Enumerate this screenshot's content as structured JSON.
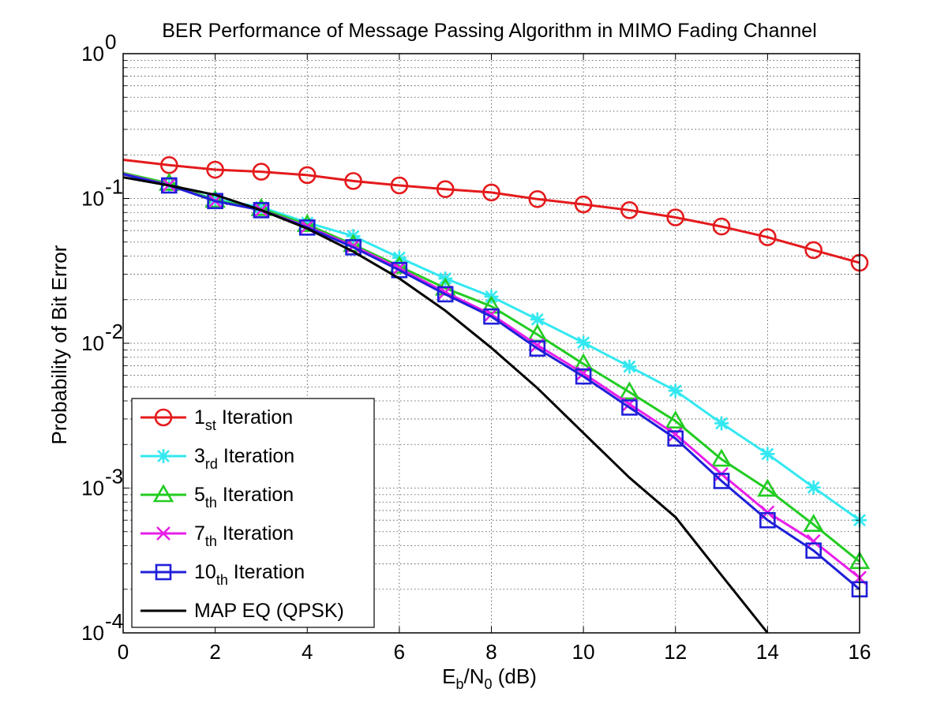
{
  "chart_data": {
    "type": "line",
    "title": "BER Performance of Message Passing Algorithm in MIMO Fading Channel",
    "xlabel": {
      "main": "E",
      "sub1": "b",
      "mid": "/N",
      "sub2": "0",
      "tail": " (dB)"
    },
    "ylabel": "Probability of Bit Error",
    "xlim": [
      0,
      16
    ],
    "ylim": [
      0.0001,
      1
    ],
    "yscale": "log",
    "grid": true,
    "legend_position": "bottom-left",
    "x_ticks": [
      "0",
      "2",
      "4",
      "6",
      "8",
      "10",
      "12",
      "14",
      "16"
    ],
    "y_ticks": [
      {
        "base": "10",
        "exp": "0"
      },
      {
        "base": "10",
        "exp": "-1"
      },
      {
        "base": "10",
        "exp": "-2"
      },
      {
        "base": "10",
        "exp": "-3"
      },
      {
        "base": "10",
        "exp": "-4"
      }
    ],
    "series": [
      {
        "label": {
          "pre": "1",
          "sub": "st",
          "post": " Iteration"
        },
        "color": "#e41a1c",
        "marker": "circle",
        "line_x": [
          0,
          1,
          2,
          3,
          4,
          5,
          6,
          7,
          8,
          9,
          10,
          11,
          12,
          13,
          14,
          15,
          16
        ],
        "line_y": [
          0.185,
          0.17,
          0.158,
          0.153,
          0.145,
          0.132,
          0.123,
          0.116,
          0.11,
          0.099,
          0.091,
          0.083,
          0.074,
          0.064,
          0.054,
          0.044,
          0.036
        ],
        "marker_x": [
          1,
          2,
          3,
          4,
          5,
          6,
          7,
          8,
          9,
          10,
          11,
          12,
          13,
          14,
          15,
          16
        ],
        "marker_y": [
          0.17,
          0.158,
          0.153,
          0.145,
          0.132,
          0.123,
          0.116,
          0.11,
          0.099,
          0.091,
          0.083,
          0.074,
          0.064,
          0.054,
          0.044,
          0.036
        ]
      },
      {
        "label": {
          "pre": "3",
          "sub": "rd",
          "post": " Iteration"
        },
        "color": "#33e8f0",
        "marker": "asterisk",
        "line_x": [
          0,
          1,
          2,
          3,
          4,
          5,
          6,
          7,
          8,
          9,
          10,
          11,
          12,
          13,
          14,
          15,
          16
        ],
        "line_y": [
          0.15,
          0.124,
          0.099,
          0.087,
          0.068,
          0.055,
          0.039,
          0.028,
          0.021,
          0.0146,
          0.0101,
          0.0069,
          0.0047,
          0.0028,
          0.00172,
          0.00101,
          0.0006
        ],
        "marker_x": [
          1,
          2,
          3,
          4,
          5,
          6,
          7,
          8,
          9,
          10,
          11,
          12,
          13,
          14,
          15,
          16
        ],
        "marker_y": [
          0.124,
          0.099,
          0.087,
          0.068,
          0.055,
          0.039,
          0.028,
          0.021,
          0.0146,
          0.0101,
          0.0069,
          0.0047,
          0.0028,
          0.00172,
          0.00101,
          0.0006
        ]
      },
      {
        "label": {
          "pre": "5",
          "sub": "th",
          "post": " Iteration"
        },
        "color": "#22cc22",
        "marker": "triangle",
        "line_x": [
          0,
          1,
          2,
          3,
          4,
          5,
          6,
          7,
          8,
          9,
          10,
          11,
          12,
          13,
          14,
          15,
          16
        ],
        "line_y": [
          0.15,
          0.127,
          0.097,
          0.085,
          0.066,
          0.048,
          0.034,
          0.024,
          0.018,
          0.0115,
          0.0072,
          0.0046,
          0.0029,
          0.00158,
          0.00098,
          0.00056,
          0.00031
        ],
        "marker_x": [
          1,
          2,
          3,
          4,
          5,
          6,
          7,
          8,
          9,
          10,
          11,
          12,
          13,
          14,
          15,
          16
        ],
        "marker_y": [
          0.127,
          0.097,
          0.085,
          0.066,
          0.048,
          0.034,
          0.024,
          0.018,
          0.0115,
          0.0072,
          0.0046,
          0.0029,
          0.00158,
          0.00098,
          0.00056,
          0.00031
        ]
      },
      {
        "label": {
          "pre": "7",
          "sub": "th",
          "post": " Iteration"
        },
        "color": "#e81ee8",
        "marker": "x",
        "line_x": [
          0,
          1,
          2,
          3,
          4,
          5,
          6,
          7,
          8,
          9,
          10,
          11,
          12,
          13,
          14,
          15,
          16
        ],
        "line_y": [
          0.148,
          0.124,
          0.096,
          0.083,
          0.064,
          0.047,
          0.033,
          0.0225,
          0.0158,
          0.0097,
          0.0062,
          0.0038,
          0.00235,
          0.00125,
          0.00068,
          0.00043,
          0.00024
        ],
        "marker_x": [
          1,
          2,
          3,
          4,
          5,
          6,
          7,
          8,
          9,
          10,
          11,
          12,
          13,
          14,
          15,
          16
        ],
        "marker_y": [
          0.124,
          0.096,
          0.083,
          0.064,
          0.047,
          0.033,
          0.0225,
          0.0158,
          0.0097,
          0.0062,
          0.0038,
          0.00235,
          0.00125,
          0.00068,
          0.00043,
          0.00024
        ]
      },
      {
        "label": {
          "pre": "10",
          "sub": "th",
          "post": " Iteration"
        },
        "color": "#1f1fd9",
        "marker": "square",
        "line_x": [
          0,
          1,
          2,
          3,
          4,
          5,
          6,
          7,
          8,
          9,
          10,
          11,
          12,
          13,
          14,
          15,
          16
        ],
        "line_y": [
          0.147,
          0.123,
          0.096,
          0.083,
          0.063,
          0.046,
          0.032,
          0.0218,
          0.0153,
          0.0092,
          0.0059,
          0.0036,
          0.0022,
          0.00112,
          0.0006,
          0.00037,
          0.0002
        ],
        "marker_x": [
          1,
          2,
          3,
          4,
          5,
          6,
          7,
          8,
          9,
          10,
          11,
          12,
          13,
          14,
          15,
          16
        ],
        "marker_y": [
          0.123,
          0.096,
          0.083,
          0.063,
          0.046,
          0.032,
          0.0218,
          0.0153,
          0.0092,
          0.0059,
          0.0036,
          0.0022,
          0.00112,
          0.0006,
          0.00037,
          0.0002
        ]
      },
      {
        "label": {
          "pre": "MAP EQ (QPSK)",
          "sub": "",
          "post": ""
        },
        "color": "#000000",
        "marker": "none",
        "line_x": [
          0,
          1,
          2,
          3,
          4,
          5,
          6,
          7,
          8,
          9,
          10,
          11,
          12,
          13,
          14
        ],
        "line_y": [
          0.14,
          0.123,
          0.106,
          0.083,
          0.062,
          0.043,
          0.028,
          0.0168,
          0.0093,
          0.0049,
          0.0024,
          0.00118,
          0.00063,
          0.00025,
          0.0001
        ],
        "marker_x": [],
        "marker_y": []
      }
    ]
  }
}
